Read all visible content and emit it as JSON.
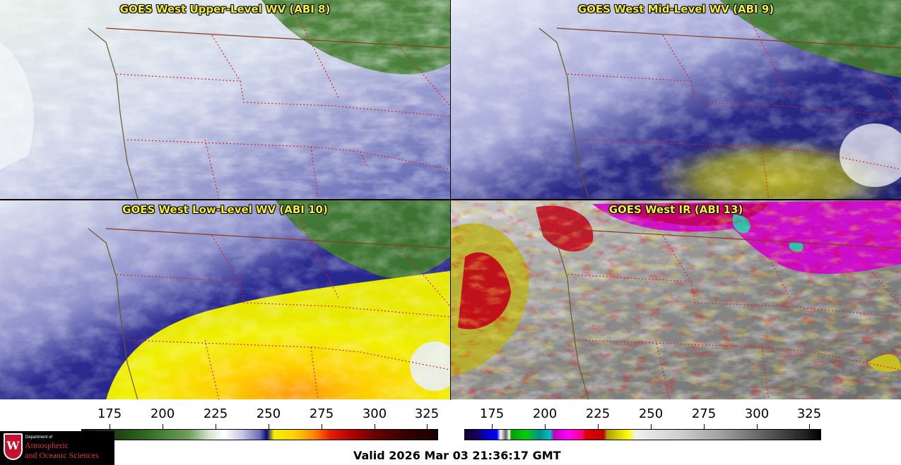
{
  "panels": {
    "upper": {
      "title": "GOES West Upper-Level WV (ABI 8)"
    },
    "mid": {
      "title": "GOES West Mid-Level WV (ABI 9)"
    },
    "low": {
      "title": "GOES West Low-Level WV (ABI 10)"
    },
    "ir": {
      "title": "GOES West IR (ABI 13)"
    }
  },
  "colorbars": {
    "wv": {
      "ticks": [
        "175",
        "200",
        "225",
        "250",
        "275",
        "300",
        "325"
      ]
    },
    "ir": {
      "ticks": [
        "175",
        "200",
        "225",
        "250",
        "275",
        "300",
        "325"
      ]
    }
  },
  "logo": {
    "shield": "W",
    "dept": "Department of",
    "line1": "Atmospheric",
    "line2": "and Oceanic Sciences"
  },
  "valid_time": "Valid 2026 Mar 03 21:36:17 GMT",
  "colors": {
    "title_text": "#f4ef2a",
    "coastline": "#6b5a1e",
    "state_border": "#e02020",
    "country_border": "#8a3a1a"
  }
}
